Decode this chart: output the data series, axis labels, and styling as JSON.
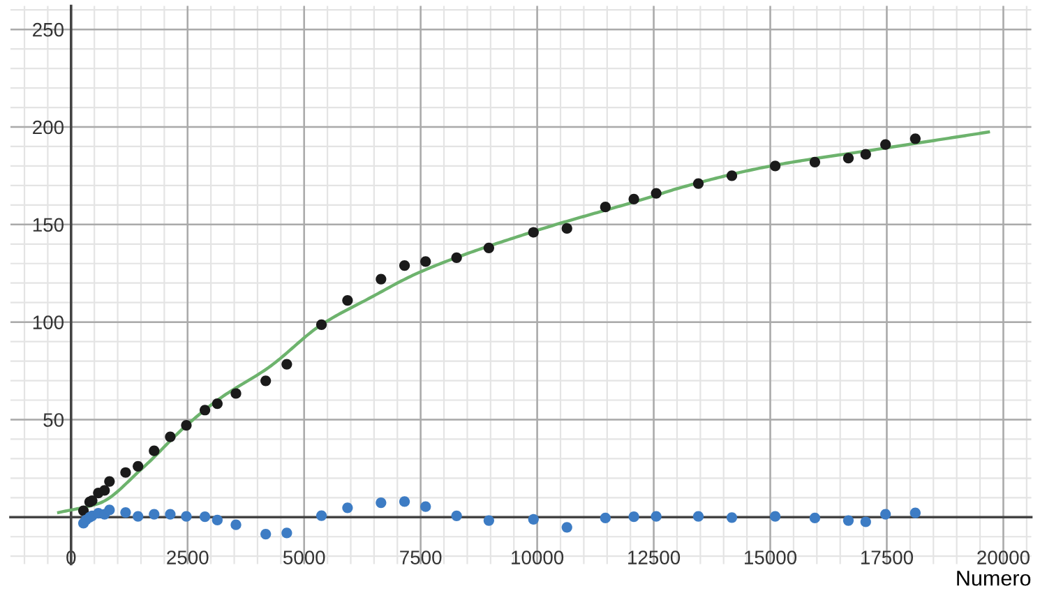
{
  "chart_data": {
    "type": "scatter",
    "xlabel": "Numero",
    "xlim": [
      -1300,
      20600
    ],
    "ylim": [
      -24,
      262
    ],
    "xticks": [
      0,
      2500,
      5000,
      7500,
      10000,
      12500,
      15000,
      17500,
      20000
    ],
    "yticks": [
      50,
      100,
      150,
      200,
      250
    ],
    "grid": true,
    "series": [
      {
        "marker": "circle",
        "color": "#1a1a1a",
        "x": [
          266,
          399,
          452,
          585,
          718,
          824,
          1170,
          1436,
          1782,
          2128,
          2473,
          2872,
          3138,
          3537,
          4176,
          4628,
          5372,
          5931,
          6649,
          7154,
          7606,
          8271,
          8963,
          9920,
          10638,
          11463,
          12074,
          12553,
          13457,
          14176,
          15106,
          15957,
          16676,
          17048,
          17473,
          18112
        ],
        "values": [
          3.3,
          7.8,
          8.5,
          12.4,
          13.7,
          18.3,
          22.9,
          26.1,
          34,
          41.2,
          47.1,
          54.9,
          58.2,
          63.4,
          69.9,
          78.4,
          98.7,
          111.1,
          122,
          129,
          131,
          133,
          138,
          146,
          148,
          159,
          163,
          166,
          171,
          175,
          180,
          182,
          184,
          186,
          191,
          194
        ]
      },
      {
        "marker": "circle",
        "color": "#3d7cc4",
        "x": [
          266,
          319,
          399,
          452,
          585,
          718,
          824,
          1170,
          1436,
          1782,
          2128,
          2473,
          2872,
          3138,
          3537,
          4176,
          4628,
          5372,
          5931,
          6649,
          7154,
          7606,
          8271,
          8963,
          9920,
          10638,
          11463,
          12074,
          12553,
          13457,
          14176,
          15106,
          15957,
          16676,
          17048,
          17473,
          18112
        ],
        "values": [
          -3.1,
          -1.5,
          0,
          0.7,
          2,
          1.5,
          3.7,
          2.4,
          0.4,
          1.5,
          1.5,
          0.4,
          0.2,
          -1.5,
          -3.9,
          -8.7,
          -8.1,
          0.8,
          4.8,
          7.4,
          8.0,
          5.4,
          0.7,
          -1.7,
          -1.1,
          -5.2,
          -0.4,
          0.2,
          0.4,
          0.4,
          -0.2,
          0.4,
          -0.4,
          -1.7,
          -2.4,
          1.5,
          2.2
        ]
      },
      {
        "type": "line",
        "marker": "none",
        "color": "#6db36d",
        "line_style": "solid",
        "x": [
          -266,
          612,
          1516,
          2473,
          3191,
          4255,
          5372,
          6383,
          7473,
          9920,
          12420,
          13032,
          14947,
          17420,
          19681
        ],
        "values": [
          2.4,
          7.2,
          24.8,
          47,
          60.8,
          77,
          98.7,
          112,
          125.5,
          146.4,
          164,
          168.6,
          179.7,
          189,
          197.4
        ]
      }
    ]
  }
}
